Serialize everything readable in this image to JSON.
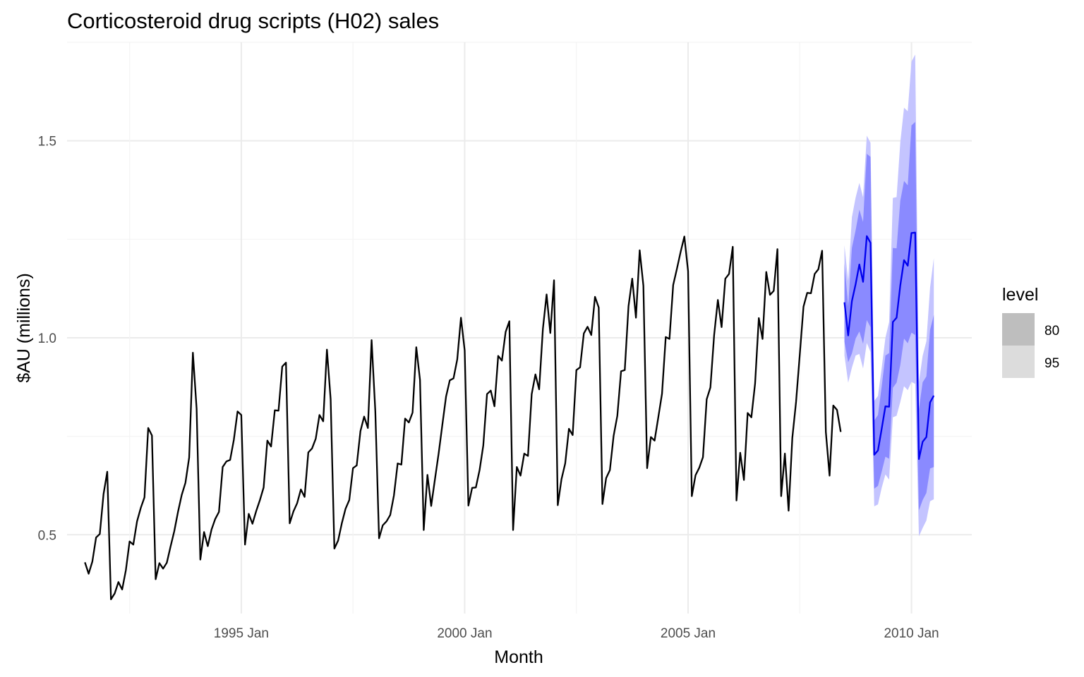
{
  "chart_data": {
    "type": "line",
    "title": "Corticosteroid drug scripts (H02) sales",
    "xlabel": "Month",
    "ylabel": "$AU (millions)",
    "xlim": [
      1991.1,
      2011.35
    ],
    "ylim": [
      0.3,
      1.75
    ],
    "grid": true,
    "x_ticks": [
      {
        "x": 1995,
        "label": "1995 Jan"
      },
      {
        "x": 2000,
        "label": "2000 Jan"
      },
      {
        "x": 2005,
        "label": "2005 Jan"
      },
      {
        "x": 2010,
        "label": "2010 Jan"
      }
    ],
    "y_ticks": [
      {
        "y": 0.5,
        "label": "0.5"
      },
      {
        "y": 1.0,
        "label": "1.0"
      },
      {
        "y": 1.5,
        "label": "1.5"
      }
    ],
    "legend": {
      "title": "level",
      "position": "right",
      "entries": [
        {
          "label": "80",
          "color": "#bebebe"
        },
        {
          "label": "95",
          "color": "#dcdcdc"
        }
      ]
    },
    "colors": {
      "history": "#000000",
      "forecast": "#0000ee",
      "band95": "#c4c4ff",
      "band80": "#8a8aff",
      "grid_major": "#ebebeb",
      "grid_minor": "#f4f4f4"
    },
    "history": {
      "start": "1991 Jul",
      "values": [
        0.43,
        0.401,
        0.432,
        0.493,
        0.502,
        0.603,
        0.66,
        0.336,
        0.351,
        0.38,
        0.361,
        0.41,
        0.483,
        0.475,
        0.534,
        0.568,
        0.595,
        0.771,
        0.752,
        0.387,
        0.428,
        0.414,
        0.429,
        0.47,
        0.509,
        0.558,
        0.601,
        0.632,
        0.696,
        0.962,
        0.82,
        0.437,
        0.507,
        0.471,
        0.513,
        0.54,
        0.558,
        0.672,
        0.686,
        0.69,
        0.741,
        0.813,
        0.804,
        0.475,
        0.553,
        0.528,
        0.56,
        0.588,
        0.62,
        0.739,
        0.724,
        0.816,
        0.815,
        0.927,
        0.937,
        0.529,
        0.559,
        0.58,
        0.615,
        0.596,
        0.709,
        0.719,
        0.744,
        0.804,
        0.788,
        0.97,
        0.844,
        0.465,
        0.485,
        0.529,
        0.566,
        0.588,
        0.669,
        0.676,
        0.763,
        0.8,
        0.771,
        0.994,
        0.813,
        0.491,
        0.524,
        0.534,
        0.55,
        0.6,
        0.681,
        0.678,
        0.795,
        0.785,
        0.81,
        0.976,
        0.893,
        0.512,
        0.652,
        0.573,
        0.64,
        0.706,
        0.779,
        0.851,
        0.892,
        0.897,
        0.945,
        1.051,
        0.968,
        0.574,
        0.619,
        0.62,
        0.664,
        0.727,
        0.857,
        0.866,
        0.826,
        0.954,
        0.942,
        1.015,
        1.042,
        0.512,
        0.672,
        0.65,
        0.706,
        0.7,
        0.857,
        0.907,
        0.869,
        1.022,
        1.11,
        1.012,
        1.146,
        0.575,
        0.641,
        0.681,
        0.769,
        0.753,
        0.918,
        0.925,
        1.011,
        1.028,
        1.007,
        1.104,
        1.077,
        0.578,
        0.644,
        0.664,
        0.751,
        0.802,
        0.915,
        0.918,
        1.08,
        1.15,
        1.051,
        1.222,
        1.132,
        0.669,
        0.748,
        0.739,
        0.798,
        0.858,
        1.002,
        0.997,
        1.134,
        1.175,
        1.218,
        1.257,
        1.169,
        0.598,
        0.651,
        0.67,
        0.697,
        0.844,
        0.874,
        1.007,
        1.096,
        1.027,
        1.15,
        1.162,
        1.231,
        0.587,
        0.708,
        0.639,
        0.809,
        0.798,
        0.884,
        1.05,
        0.997,
        1.167,
        1.109,
        1.119,
        1.225,
        0.598,
        0.706,
        0.561,
        0.746,
        0.837,
        0.957,
        1.079,
        1.114,
        1.113,
        1.162,
        1.174,
        1.221,
        0.761,
        0.65,
        0.828,
        0.817,
        0.761
      ]
    },
    "forecast": {
      "start": "2008 Jul",
      "mean": [
        1.09,
        1.006,
        1.093,
        1.136,
        1.186,
        1.142,
        1.258,
        1.241,
        0.703,
        0.714,
        0.769,
        0.826,
        0.825,
        1.04,
        1.051,
        1.133,
        1.197,
        1.183,
        1.266,
        1.267,
        0.692,
        0.736,
        0.748,
        0.836,
        0.853
      ],
      "lo80": [
        0.99,
        0.938,
        0.96,
        0.998,
        1.016,
        0.985,
        1.045,
        1.027,
        0.617,
        0.624,
        0.66,
        0.698,
        0.693,
        0.873,
        0.886,
        0.931,
        0.998,
        0.986,
        1.013,
        1.007,
        0.562,
        0.588,
        0.606,
        0.668,
        0.672
      ],
      "hi80": [
        1.19,
        1.08,
        1.228,
        1.273,
        1.325,
        1.294,
        1.467,
        1.459,
        0.79,
        0.804,
        0.876,
        0.955,
        0.961,
        1.228,
        1.227,
        1.348,
        1.398,
        1.387,
        1.539,
        1.548,
        0.819,
        0.887,
        0.902,
        1.02,
        1.058
      ],
      "lo95": [
        0.955,
        0.886,
        0.924,
        0.955,
        0.959,
        0.922,
        0.987,
        0.964,
        0.572,
        0.577,
        0.619,
        0.653,
        0.64,
        0.798,
        0.802,
        0.837,
        0.877,
        0.867,
        0.888,
        0.883,
        0.496,
        0.517,
        0.536,
        0.585,
        0.59
      ],
      "hi95": [
        1.235,
        1.144,
        1.306,
        1.356,
        1.393,
        1.357,
        1.513,
        1.495,
        0.84,
        0.852,
        0.923,
        1.0,
        1.04,
        1.355,
        1.357,
        1.496,
        1.584,
        1.575,
        1.701,
        1.719,
        0.888,
        0.954,
        0.991,
        1.128,
        1.202
      ]
    }
  }
}
